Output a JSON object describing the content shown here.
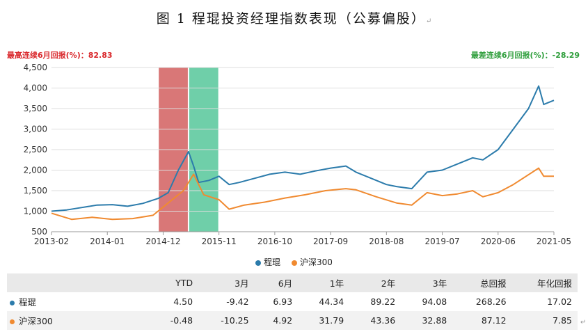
{
  "figure": {
    "title": "图 1  程琨投资经理指数表现（公募偏股）",
    "para_mark": "↵",
    "best_label": "最高连续6月回报(%)：",
    "best_value": "82.83",
    "worst_label": "最差连续6月回报(%)：",
    "worst_value": "-28.29"
  },
  "colors": {
    "manager": "#2b7bab",
    "index": "#f08a30",
    "best_band": "#d97777",
    "worst_band": "#6fcfa9",
    "best_text": "#d9262a",
    "worst_text": "#2e9e3b"
  },
  "chart_data": {
    "type": "line",
    "y_ticks": [
      "4,500",
      "4,000",
      "3,500",
      "3,000",
      "2,500",
      "2,000",
      "1,500",
      "1,000",
      "500"
    ],
    "y_tick_values": [
      4500,
      4000,
      3500,
      3000,
      2500,
      2000,
      1500,
      1000,
      500
    ],
    "ylim": [
      500,
      4500
    ],
    "x_ticks": [
      "2013-02",
      "2014-01",
      "2014-12",
      "2015-11",
      "2016-10",
      "2017-09",
      "2018-08",
      "2019-07",
      "2020-06",
      "2021-05"
    ],
    "grid": true,
    "legend_position": "bottom",
    "shaded_periods": [
      {
        "name": "best_6m",
        "start": "2014-11",
        "end": "2015-05"
      },
      {
        "name": "worst_6m",
        "start": "2015-05",
        "end": "2015-11"
      }
    ],
    "series": [
      {
        "name": "程琨",
        "color": "#2b7bab",
        "x": [
          "2013-02",
          "2013-05",
          "2013-08",
          "2013-11",
          "2014-02",
          "2014-05",
          "2014-08",
          "2014-11",
          "2015-01",
          "2015-03",
          "2015-05",
          "2015-06",
          "2015-07",
          "2015-09",
          "2015-11",
          "2016-01",
          "2016-03",
          "2016-06",
          "2016-09",
          "2016-12",
          "2017-03",
          "2017-06",
          "2017-09",
          "2017-12",
          "2018-02",
          "2018-05",
          "2018-08",
          "2018-10",
          "2019-01",
          "2019-04",
          "2019-07",
          "2019-10",
          "2020-01",
          "2020-03",
          "2020-06",
          "2020-09",
          "2020-12",
          "2021-02",
          "2021-03",
          "2021-05"
        ],
        "y": [
          1000,
          1030,
          1090,
          1150,
          1160,
          1120,
          1190,
          1310,
          1450,
          2000,
          2450,
          2100,
          1700,
          1750,
          1850,
          1650,
          1700,
          1800,
          1900,
          1950,
          1900,
          1980,
          2050,
          2100,
          1950,
          1800,
          1650,
          1600,
          1550,
          1950,
          2000,
          2150,
          2300,
          2250,
          2500,
          3000,
          3500,
          4050,
          3600,
          3700
        ]
      },
      {
        "name": "沪深300",
        "color": "#f08a30",
        "x": [
          "2013-02",
          "2013-06",
          "2013-10",
          "2014-02",
          "2014-06",
          "2014-10",
          "2015-01",
          "2015-04",
          "2015-06",
          "2015-08",
          "2015-11",
          "2016-01",
          "2016-04",
          "2016-08",
          "2016-12",
          "2017-04",
          "2017-08",
          "2017-12",
          "2018-02",
          "2018-06",
          "2018-10",
          "2019-01",
          "2019-04",
          "2019-07",
          "2019-10",
          "2020-01",
          "2020-03",
          "2020-06",
          "2020-09",
          "2021-02",
          "2021-03",
          "2021-05"
        ],
        "y": [
          950,
          800,
          850,
          800,
          820,
          900,
          1200,
          1500,
          1900,
          1400,
          1280,
          1050,
          1150,
          1220,
          1320,
          1400,
          1500,
          1550,
          1520,
          1350,
          1200,
          1150,
          1450,
          1380,
          1420,
          1500,
          1350,
          1450,
          1650,
          2050,
          1850,
          1850
        ]
      }
    ]
  },
  "legend": {
    "manager": "程琨",
    "index": "沪深300"
  },
  "table": {
    "headers": [
      "YTD",
      "3月",
      "6月",
      "1年",
      "2年",
      "3年",
      "总回报",
      "年化回报"
    ],
    "rows": [
      {
        "name": "程琨",
        "values": [
          "4.50",
          "-9.42",
          "6.93",
          "44.34",
          "89.22",
          "94.08",
          "268.26",
          "17.02"
        ]
      },
      {
        "name": "沪深300",
        "values": [
          "-0.48",
          "-10.25",
          "4.92",
          "31.79",
          "43.36",
          "32.88",
          "87.12",
          "7.85"
        ]
      }
    ]
  }
}
